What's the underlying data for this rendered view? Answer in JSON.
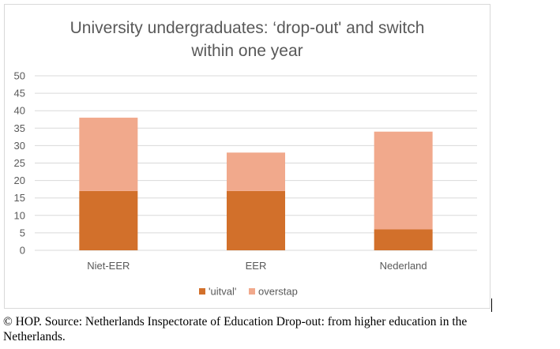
{
  "chart_data": {
    "type": "bar",
    "stacked": true,
    "title_lines": [
      "University undergraduates: ‘drop-out' and switch",
      "within one year"
    ],
    "categories": [
      "Niet-EER",
      "EER",
      "Nederland"
    ],
    "series": [
      {
        "name": "'uitval'",
        "values": [
          17,
          17,
          6
        ],
        "color": "#d2702b"
      },
      {
        "name": "overstap",
        "values": [
          21,
          11,
          28
        ],
        "color": "#f1a98c"
      }
    ],
    "ylim": [
      0,
      50
    ],
    "yticks": [
      0,
      5,
      10,
      15,
      20,
      25,
      30,
      35,
      40,
      45,
      50
    ],
    "grid": true,
    "legend_position": "bottom"
  },
  "caption": {
    "line1": "© HOP. Source: Netherlands Inspectorate of Education Drop-out: from higher education in the",
    "line2": "Netherlands."
  },
  "colors": {
    "gridline": "#d9d9d9",
    "text": "#595959",
    "title": "#595959"
  }
}
